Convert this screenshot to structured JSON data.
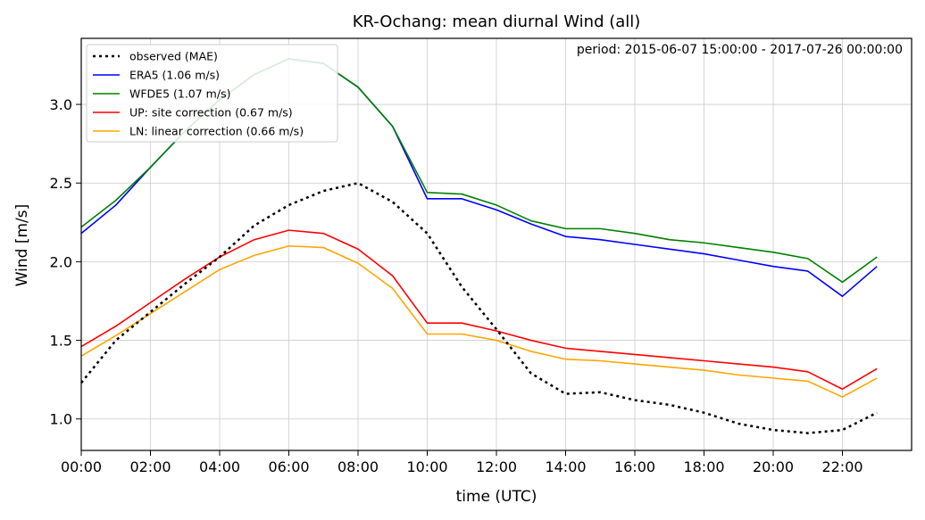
{
  "chart_data": {
    "type": "line",
    "title": "KR-Ochang: mean diurnal Wind (all)",
    "annotation": "period: 2015-06-07 15:00:00 - 2017-07-26 00:00:00",
    "xlabel": "time (UTC)",
    "ylabel": "Wind [m/s]",
    "xlim": [
      0,
      24
    ],
    "ylim": [
      0.8,
      3.42
    ],
    "grid": true,
    "legend_position": "upper-left",
    "x_ticks": [
      0,
      2,
      4,
      6,
      8,
      10,
      12,
      14,
      16,
      18,
      20,
      22
    ],
    "x_tick_labels": [
      "00:00",
      "02:00",
      "04:00",
      "06:00",
      "08:00",
      "10:00",
      "12:00",
      "14:00",
      "16:00",
      "18:00",
      "20:00",
      "22:00"
    ],
    "y_ticks": [
      1.0,
      1.5,
      2.0,
      2.5,
      3.0
    ],
    "y_tick_labels": [
      "1.0",
      "1.5",
      "2.0",
      "2.5",
      "3.0"
    ],
    "x": [
      0,
      1,
      2,
      3,
      4,
      5,
      6,
      7,
      8,
      9,
      10,
      11,
      12,
      13,
      14,
      15,
      16,
      17,
      18,
      19,
      20,
      21,
      22,
      23
    ],
    "series": [
      {
        "name": "observed (MAE)",
        "color": "#000000",
        "dashed": true,
        "values": [
          1.23,
          1.5,
          1.68,
          1.86,
          2.03,
          2.23,
          2.36,
          2.45,
          2.5,
          2.38,
          2.18,
          1.84,
          1.57,
          1.29,
          1.16,
          1.17,
          1.12,
          1.09,
          1.04,
          0.97,
          0.93,
          0.91,
          0.93,
          1.04
        ]
      },
      {
        "name": "ERA5 (1.06 m/s)",
        "color": "#0000ff",
        "dashed": false,
        "values": [
          2.18,
          2.36,
          2.6,
          2.83,
          3.03,
          3.19,
          3.29,
          3.26,
          3.11,
          2.86,
          2.4,
          2.4,
          2.33,
          2.24,
          2.16,
          2.14,
          2.11,
          2.08,
          2.05,
          2.01,
          1.97,
          1.94,
          1.78,
          1.97
        ]
      },
      {
        "name": "WFDE5 (1.07 m/s)",
        "color": "#008000",
        "dashed": false,
        "values": [
          2.22,
          2.39,
          2.6,
          2.83,
          3.03,
          3.19,
          3.29,
          3.26,
          3.11,
          2.86,
          2.44,
          2.43,
          2.36,
          2.26,
          2.21,
          2.21,
          2.18,
          2.14,
          2.12,
          2.09,
          2.06,
          2.02,
          1.87,
          2.03
        ]
      },
      {
        "name": "UP: site correction (0.67 m/s)",
        "color": "#ff0000",
        "dashed": false,
        "values": [
          1.46,
          1.59,
          1.74,
          1.89,
          2.03,
          2.14,
          2.2,
          2.18,
          2.08,
          1.91,
          1.61,
          1.61,
          1.56,
          1.5,
          1.45,
          1.43,
          1.41,
          1.39,
          1.37,
          1.35,
          1.33,
          1.3,
          1.19,
          1.32
        ]
      },
      {
        "name": "LN: linear correction (0.66 m/s)",
        "color": "#ffa500",
        "dashed": false,
        "values": [
          1.4,
          1.53,
          1.67,
          1.81,
          1.95,
          2.04,
          2.1,
          2.09,
          1.99,
          1.83,
          1.54,
          1.54,
          1.5,
          1.43,
          1.38,
          1.37,
          1.35,
          1.33,
          1.31,
          1.28,
          1.26,
          1.24,
          1.14,
          1.26
        ]
      }
    ]
  }
}
